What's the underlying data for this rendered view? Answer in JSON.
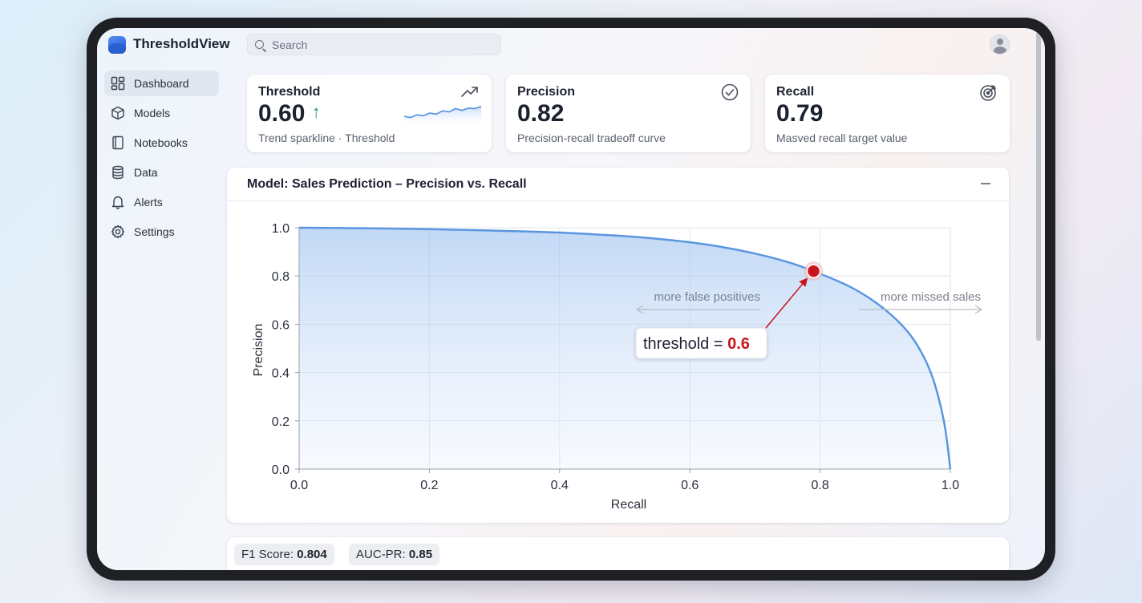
{
  "app": {
    "title": "ThresholdView"
  },
  "search": {
    "placeholder": "Search",
    "value": ""
  },
  "sidebar": {
    "items": [
      {
        "label": "Dashboard",
        "icon": "dashboard-icon",
        "active": true
      },
      {
        "label": "Models",
        "icon": "cube-icon"
      },
      {
        "label": "Notebooks",
        "icon": "notebook-icon"
      },
      {
        "label": "Data",
        "icon": "database-icon"
      },
      {
        "label": "Alerts",
        "icon": "bell-icon"
      },
      {
        "label": "Settings",
        "icon": "gear-icon"
      }
    ]
  },
  "cards": [
    {
      "title": "Threshold",
      "value": "0.60",
      "trend": "↑",
      "subtitle": "Trend sparkline · Threshold",
      "icon": "trend-up-icon"
    },
    {
      "title": "Precision",
      "value": "0.82",
      "subtitle": "Precision-recall tradeoff curve",
      "icon": "check-circle-icon"
    },
    {
      "title": "Recall",
      "value": "0.79",
      "subtitle": "Masved recall target value",
      "icon": "target-icon"
    }
  ],
  "sparkline": {
    "values": [
      0.35,
      0.3,
      0.42,
      0.38,
      0.5,
      0.45,
      0.6,
      0.55,
      0.7,
      0.62,
      0.72,
      0.7,
      0.8
    ]
  },
  "panel": {
    "title": "Model: Sales Prediction – Precision vs. Recall"
  },
  "chart_data": {
    "type": "line",
    "title": "",
    "xlabel": "Recall",
    "ylabel": "Precision",
    "xlim": [
      0,
      1
    ],
    "ylim": [
      0,
      1
    ],
    "xticks": [
      "0.0",
      "0.2",
      "0.4",
      "0.6",
      "0.8",
      "1.0"
    ],
    "yticks": [
      "0.0",
      "0.2",
      "0.4",
      "0.6",
      "0.8",
      "1.0"
    ],
    "grid": true,
    "series": [
      {
        "x": [
          0.0,
          0.1,
          0.2,
          0.3,
          0.4,
          0.5,
          0.55,
          0.6,
          0.65,
          0.7,
          0.75,
          0.79,
          0.85,
          0.9,
          0.94,
          0.97,
          0.99,
          1.0
        ],
        "y": [
          1.0,
          0.998,
          0.994,
          0.988,
          0.98,
          0.965,
          0.954,
          0.94,
          0.92,
          0.893,
          0.858,
          0.82,
          0.75,
          0.66,
          0.55,
          0.4,
          0.2,
          0.0
        ],
        "color": "#5a96e0"
      }
    ],
    "highlight": {
      "x": 0.79,
      "y": 0.82,
      "color": "#c8141b"
    },
    "annotations": {
      "threshold_prefix": "threshold = ",
      "threshold_value": "0.6",
      "left_arrow": "more false positives",
      "right_arrow": "more missed sales"
    }
  },
  "stats": [
    {
      "label": "F1 Score:",
      "value": "0.804"
    },
    {
      "label": "AUC-PR:",
      "value": "0.85"
    }
  ]
}
